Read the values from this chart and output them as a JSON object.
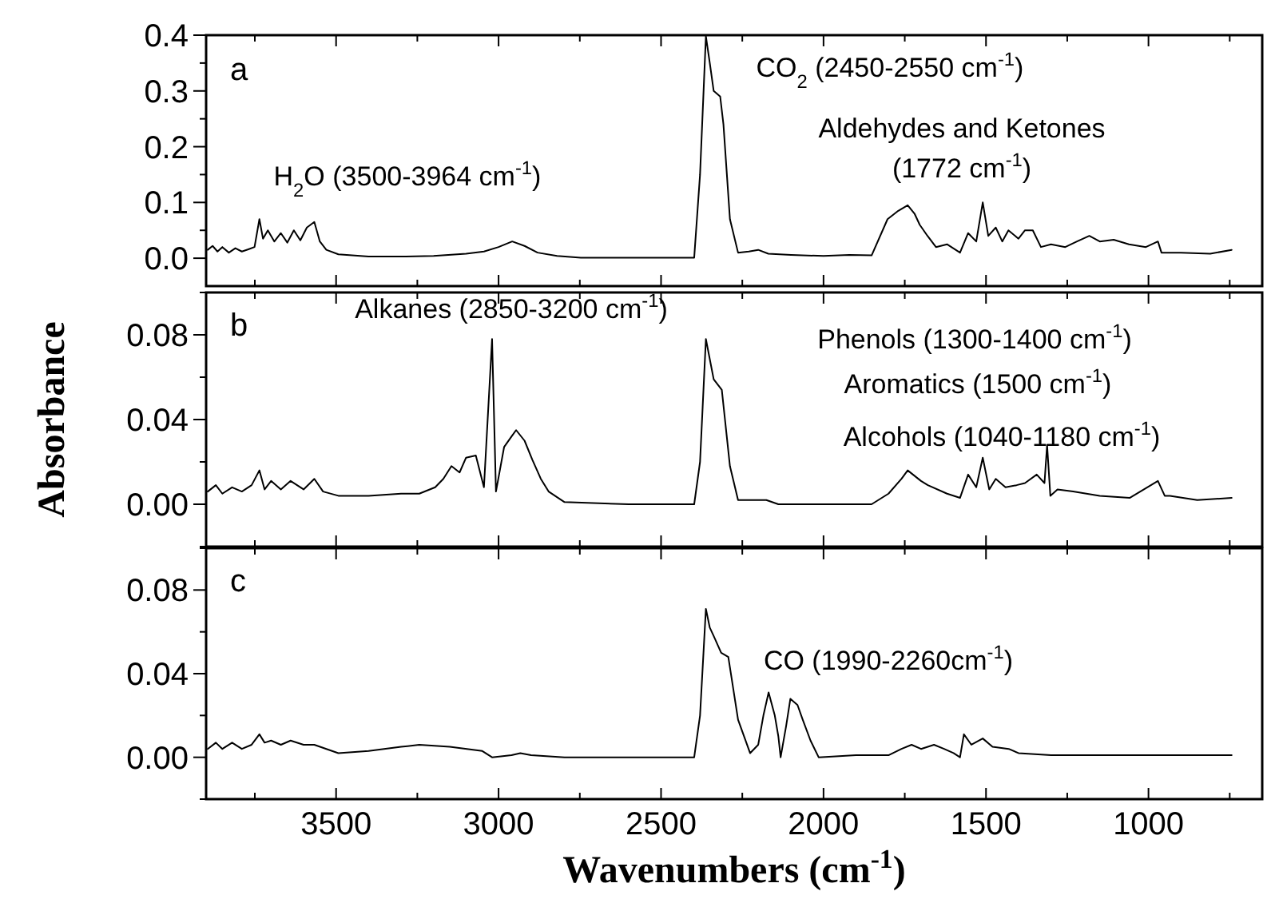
{
  "chart_data": [
    {
      "type": "line",
      "xlim": [
        3900,
        650
      ],
      "xticks": [
        {
          "value": 3750,
          "label": null
        },
        3500,
        {
          "value": 3250,
          "label": null
        },
        3000,
        {
          "value": 2750,
          "label": null
        },
        2500,
        {
          "value": 2250,
          "label": null
        },
        2000,
        {
          "value": 1750,
          "label": null
        },
        1500,
        {
          "value": 1250,
          "label": null
        },
        1000,
        {
          "value": 750,
          "label": null
        }
      ],
      "ylim": [
        -0.05,
        0.4
      ],
      "yticks": [
        {
          "value": 0,
          "label": "0.0"
        },
        {
          "value": 0.05,
          "label": null
        },
        0.1,
        {
          "value": 0.15,
          "label": null
        },
        0.2,
        {
          "value": 0.25,
          "label": null
        },
        0.3,
        {
          "value": 0.35,
          "label": null
        },
        0.4
      ],
      "tick_labels": "y",
      "grid": false,
      "marker": "none",
      "line_style": "solid",
      "annotations": [
        "a",
        "H$_{2}$O (3500-3964 cm$^{-1}$)",
        "CO$_{2}$ (2450-2550 cm$^{-1}$)",
        "Aldehydes and Ketones",
        "(1772 cm$^{-1}$)"
      ],
      "series": [
        {
          "color": "#000000",
          "x": [
            3895,
            3880,
            3865,
            3850,
            3830,
            3810,
            3790,
            3770,
            3751,
            3736,
            3725,
            3710,
            3690,
            3670,
            3650,
            3630,
            3610,
            3590,
            3567,
            3550,
            3530,
            3493,
            3400,
            3300,
            3200,
            3100,
            3045,
            3000,
            2958,
            2920,
            2880,
            2820,
            2747,
            2600,
            2500,
            2398,
            2380,
            2362,
            2350,
            2338,
            2318,
            2308,
            2288,
            2263,
            2230,
            2201,
            2170,
            2100,
            2000,
            1920,
            1852,
            1803,
            1770,
            1741,
            1720,
            1704,
            1680,
            1654,
            1620,
            1580,
            1555,
            1530,
            1510,
            1493,
            1470,
            1450,
            1431,
            1400,
            1380,
            1356,
            1331,
            1300,
            1256,
            1220,
            1182,
            1150,
            1107,
            1060,
            1008,
            971,
            960,
            900,
            810,
            744
          ],
          "values": [
            0.015,
            0.022,
            0.012,
            0.02,
            0.01,
            0.018,
            0.012,
            0.016,
            0.02,
            0.07,
            0.035,
            0.05,
            0.03,
            0.045,
            0.028,
            0.05,
            0.032,
            0.055,
            0.065,
            0.03,
            0.015,
            0.007,
            0.003,
            0.003,
            0.004,
            0.008,
            0.012,
            0.02,
            0.03,
            0.022,
            0.01,
            0.004,
            0.001,
            0.001,
            0.001,
            0.001,
            0.15,
            0.398,
            0.35,
            0.3,
            0.29,
            0.24,
            0.07,
            0.01,
            0.012,
            0.015,
            0.008,
            0.006,
            0.004,
            0.006,
            0.005,
            0.07,
            0.085,
            0.095,
            0.08,
            0.06,
            0.04,
            0.02,
            0.025,
            0.01,
            0.045,
            0.03,
            0.1,
            0.04,
            0.055,
            0.03,
            0.05,
            0.035,
            0.05,
            0.05,
            0.02,
            0.025,
            0.02,
            0.03,
            0.04,
            0.03,
            0.033,
            0.025,
            0.02,
            0.03,
            0.01,
            0.01,
            0.008,
            0.015
          ]
        }
      ]
    },
    {
      "type": "line",
      "xlim": [
        3900,
        650
      ],
      "xticks": [
        {
          "value": 3750,
          "label": null
        },
        3500,
        {
          "value": 3250,
          "label": null
        },
        3000,
        {
          "value": 2750,
          "label": null
        },
        2500,
        {
          "value": 2250,
          "label": null
        },
        2000,
        {
          "value": 1750,
          "label": null
        },
        1500,
        {
          "value": 1250,
          "label": null
        },
        1000,
        {
          "value": 750,
          "label": null
        }
      ],
      "ylim": [
        -0.02,
        0.1
      ],
      "yticks": [
        {
          "value": -0.02,
          "label": null
        },
        {
          "value": 0,
          "label": "0.00"
        },
        {
          "value": 0.02,
          "label": null
        },
        0.04,
        {
          "value": 0.06,
          "label": null
        },
        0.08,
        {
          "value": 0.1,
          "label": null
        }
      ],
      "tick_labels": "y",
      "grid": false,
      "marker": "none",
      "line_style": "solid",
      "ylabel": "Absorbance",
      "annotations": [
        "b",
        "Alkanes (2850-3200 cm$^{-1}$)",
        "Phenols (1300-1400 cm$^{-1}$)",
        "Aromatics (1500 cm$^{-1}$)",
        "Alcohols (1040-1180 cm$^{-1}$)"
      ],
      "series": [
        {
          "color": "#000000",
          "x": [
            3895,
            3870,
            3850,
            3820,
            3790,
            3760,
            3736,
            3720,
            3700,
            3670,
            3640,
            3600,
            3567,
            3540,
            3493,
            3400,
            3300,
            3244,
            3195,
            3170,
            3145,
            3120,
            3100,
            3070,
            3045,
            3020,
            3008,
            2983,
            2960,
            2946,
            2920,
            2896,
            2870,
            2846,
            2797,
            2600,
            2398,
            2380,
            2362,
            2338,
            2313,
            2288,
            2263,
            2176,
            2139,
            2052,
            1852,
            1800,
            1760,
            1741,
            1700,
            1679,
            1620,
            1580,
            1555,
            1530,
            1510,
            1490,
            1470,
            1440,
            1406,
            1380,
            1344,
            1320,
            1312,
            1302,
            1280,
            1232,
            1150,
            1058,
            971,
            950,
            934,
            850,
            744
          ],
          "values": [
            0.006,
            0.009,
            0.005,
            0.008,
            0.006,
            0.009,
            0.016,
            0.007,
            0.011,
            0.007,
            0.011,
            0.007,
            0.012,
            0.006,
            0.004,
            0.004,
            0.005,
            0.005,
            0.008,
            0.012,
            0.018,
            0.015,
            0.022,
            0.023,
            0.008,
            0.078,
            0.006,
            0.027,
            0.032,
            0.035,
            0.03,
            0.021,
            0.012,
            0.006,
            0.001,
            0.0,
            0.0,
            0.02,
            0.078,
            0.059,
            0.054,
            0.018,
            0.002,
            0.002,
            0.0,
            0.0,
            0.0,
            0.005,
            0.012,
            0.016,
            0.011,
            0.009,
            0.005,
            0.003,
            0.014,
            0.008,
            0.022,
            0.007,
            0.012,
            0.008,
            0.009,
            0.01,
            0.014,
            0.01,
            0.028,
            0.004,
            0.007,
            0.006,
            0.004,
            0.003,
            0.011,
            0.004,
            0.004,
            0.002,
            0.003
          ]
        }
      ]
    },
    {
      "type": "line",
      "xlim": [
        3900,
        650
      ],
      "xticks": [
        {
          "value": 3750,
          "label": null
        },
        3500,
        {
          "value": 3250,
          "label": null
        },
        3000,
        {
          "value": 2750,
          "label": null
        },
        2500,
        {
          "value": 2250,
          "label": null
        },
        2000,
        {
          "value": 1750,
          "label": null
        },
        1500,
        {
          "value": 1250,
          "label": null
        },
        1000,
        {
          "value": 750,
          "label": null
        }
      ],
      "ylim": [
        -0.02,
        0.1
      ],
      "yticks": [
        {
          "value": -0.02,
          "label": null
        },
        {
          "value": 0,
          "label": "0.00"
        },
        {
          "value": 0.02,
          "label": null
        },
        0.04,
        {
          "value": 0.06,
          "label": null
        },
        0.08,
        {
          "value": 0.1,
          "label": null
        }
      ],
      "grid": false,
      "marker": "none",
      "line_style": "solid",
      "xlabel": "Wavenumbers (cm$^{-1}$)",
      "annotations": [
        "c",
        "CO (1990-2260cm$^{-1}$)"
      ],
      "series": [
        {
          "color": "#000000",
          "x": [
            3895,
            3870,
            3850,
            3820,
            3790,
            3760,
            3736,
            3720,
            3700,
            3670,
            3640,
            3600,
            3567,
            3530,
            3493,
            3400,
            3300,
            3244,
            3150,
            3050,
            3020,
            2960,
            2933,
            2900,
            2797,
            2600,
            2398,
            2380,
            2362,
            2350,
            2338,
            2315,
            2293,
            2263,
            2226,
            2201,
            2185,
            2169,
            2150,
            2139,
            2132,
            2115,
            2102,
            2080,
            2064,
            2040,
            2015,
            1900,
            1800,
            1760,
            1729,
            1700,
            1660,
            1629,
            1600,
            1580,
            1568,
            1545,
            1510,
            1480,
            1430,
            1400,
            1300,
            1200,
            970,
            900,
            744
          ],
          "values": [
            0.004,
            0.007,
            0.004,
            0.007,
            0.004,
            0.006,
            0.011,
            0.007,
            0.008,
            0.006,
            0.008,
            0.006,
            0.006,
            0.004,
            0.002,
            0.003,
            0.005,
            0.006,
            0.005,
            0.003,
            0.0,
            0.001,
            0.002,
            0.001,
            0.0,
            0.0,
            0.0,
            0.02,
            0.071,
            0.062,
            0.058,
            0.05,
            0.048,
            0.018,
            0.002,
            0.006,
            0.02,
            0.031,
            0.02,
            0.01,
            0.0,
            0.015,
            0.028,
            0.025,
            0.018,
            0.008,
            0.0,
            0.001,
            0.001,
            0.004,
            0.006,
            0.004,
            0.006,
            0.004,
            0.002,
            0.0,
            0.011,
            0.006,
            0.009,
            0.005,
            0.004,
            0.002,
            0.001,
            0.001,
            0.001,
            0.001,
            0.001
          ]
        }
      ]
    }
  ]
}
